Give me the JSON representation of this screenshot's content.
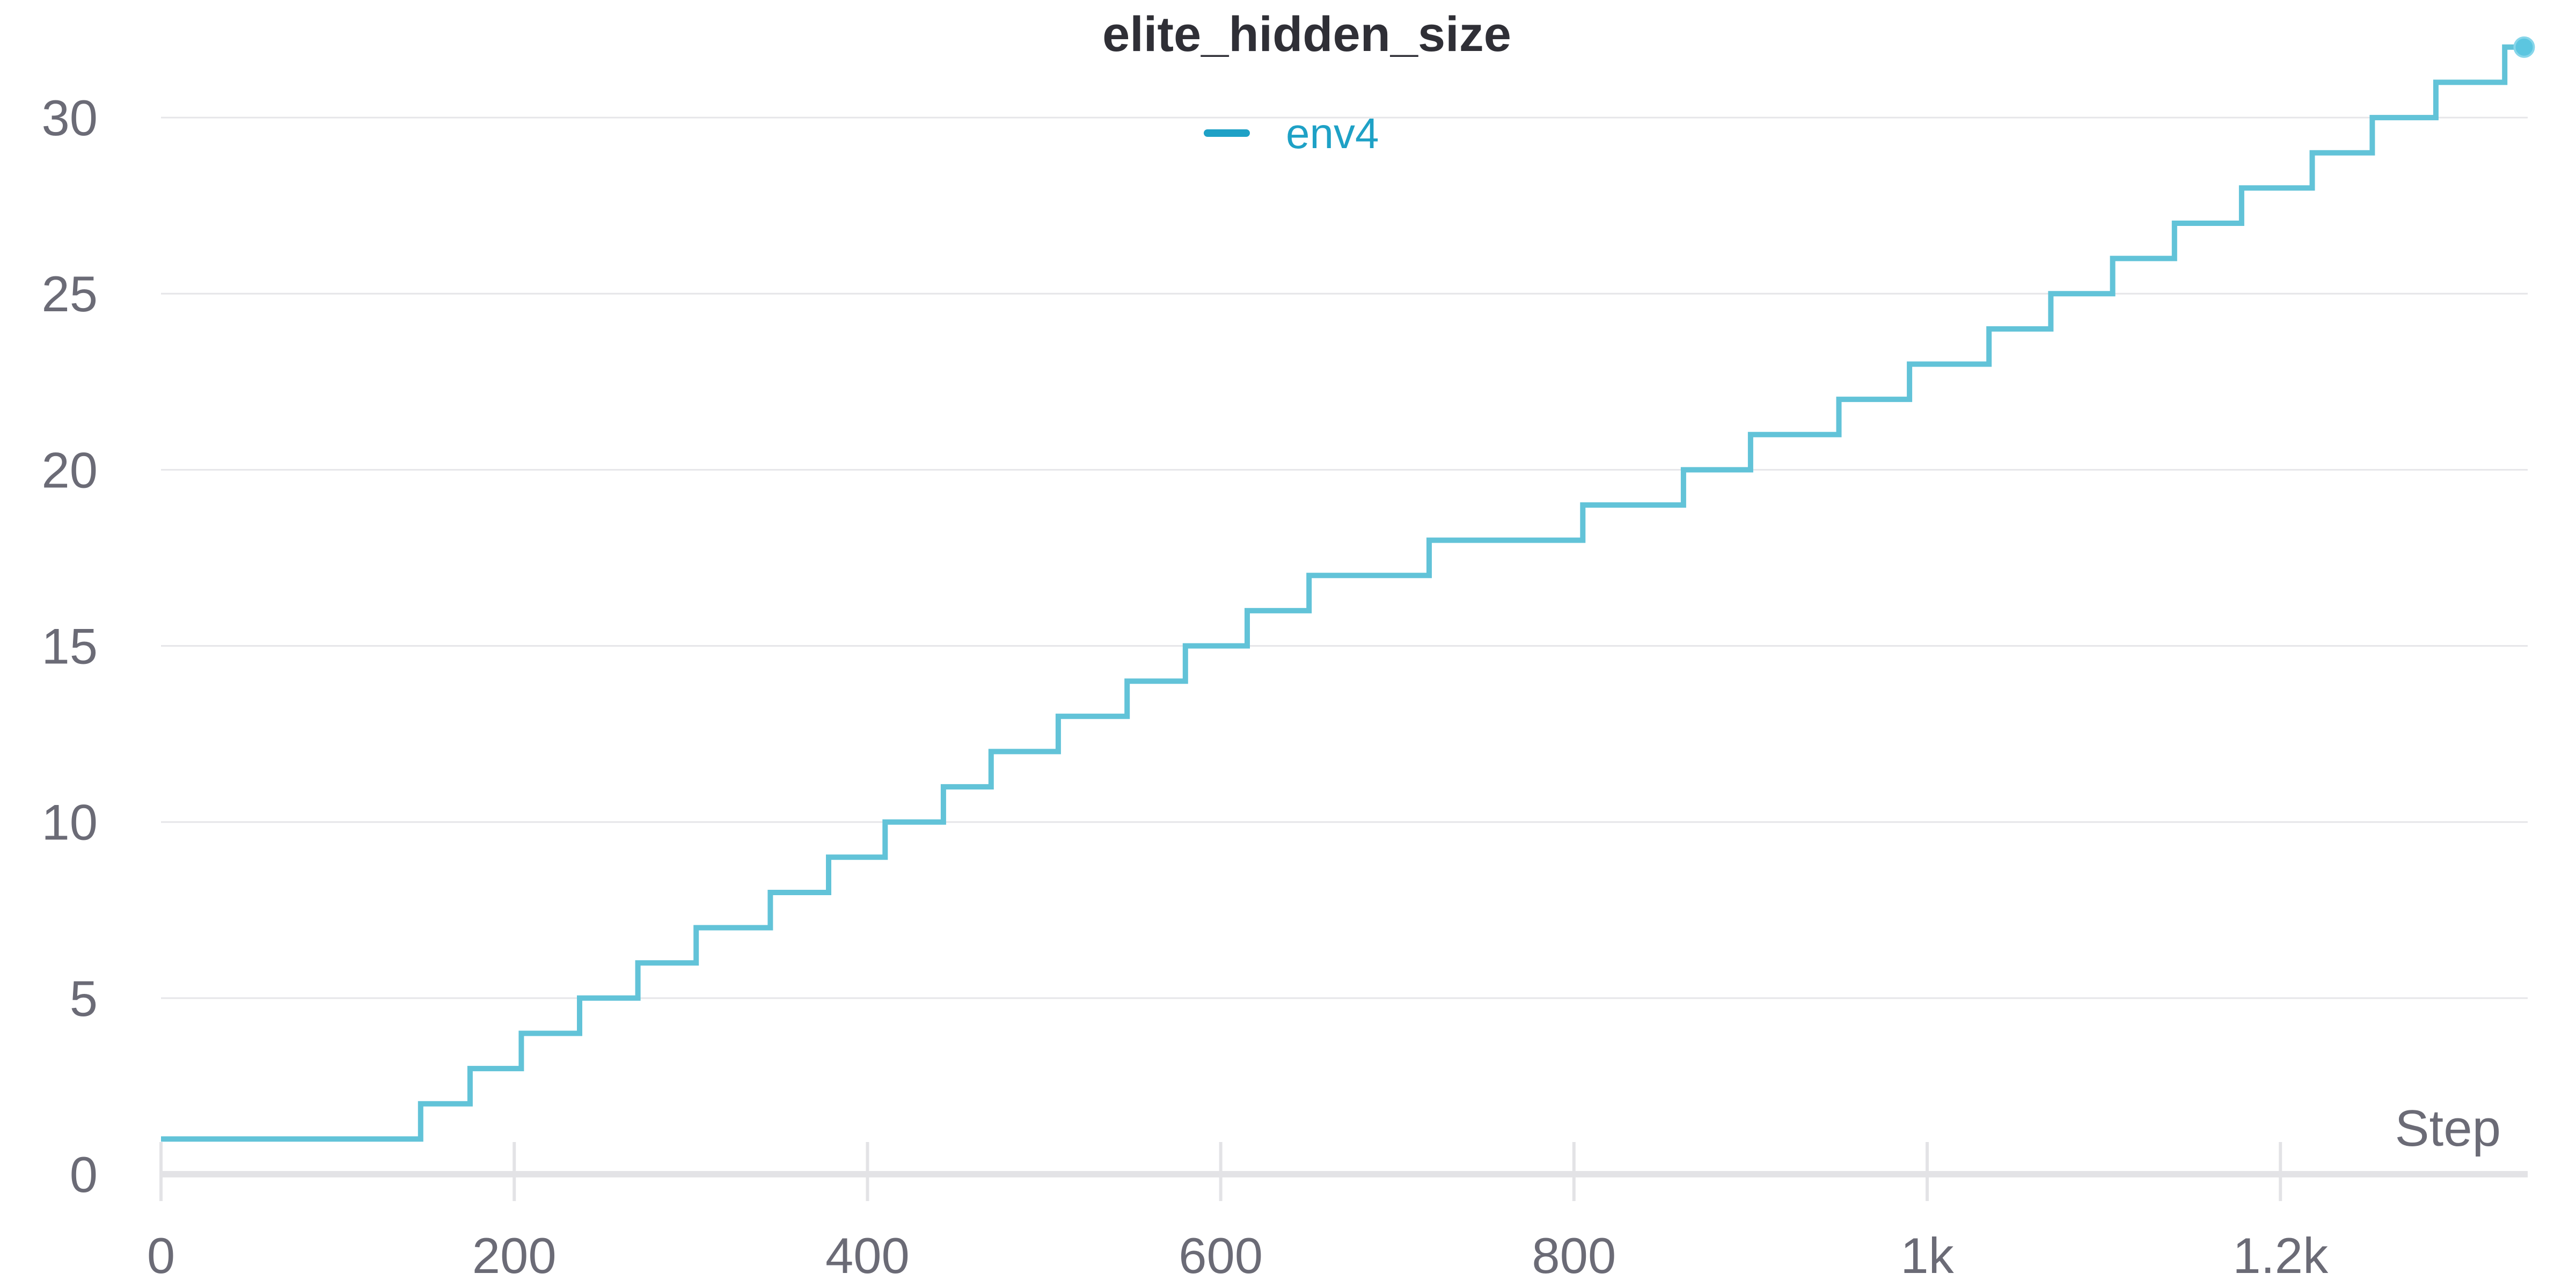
{
  "chart_data": {
    "type": "line",
    "title": "elite_hidden_size",
    "xlabel": "Step",
    "ylabel": "",
    "xlim": [
      0,
      1340
    ],
    "ylim": [
      0,
      32.5
    ],
    "x_ticks": [
      {
        "value": 0,
        "label": "0"
      },
      {
        "value": 200,
        "label": "200"
      },
      {
        "value": 400,
        "label": "400"
      },
      {
        "value": 600,
        "label": "600"
      },
      {
        "value": 800,
        "label": "800"
      },
      {
        "value": 1000,
        "label": "1k"
      },
      {
        "value": 1200,
        "label": "1.2k"
      }
    ],
    "y_ticks": [
      {
        "value": 0,
        "label": "0"
      },
      {
        "value": 5,
        "label": "5"
      },
      {
        "value": 10,
        "label": "10"
      },
      {
        "value": 15,
        "label": "15"
      },
      {
        "value": 20,
        "label": "20"
      },
      {
        "value": 25,
        "label": "25"
      },
      {
        "value": 30,
        "label": "30"
      }
    ],
    "grid": true,
    "legend_position": "top-center",
    "step_mode": "after",
    "series": [
      {
        "name": "env4",
        "color": "#62c3d8",
        "legend_color": "#1ea1c6",
        "x": [
          0,
          147,
          175,
          204,
          237,
          270,
          303,
          345,
          378,
          410,
          443,
          470,
          508,
          547,
          580,
          615,
          650,
          718,
          805,
          862,
          900,
          950,
          990,
          1035,
          1070,
          1105,
          1140,
          1178,
          1218,
          1252,
          1288,
          1327,
          1338
        ],
        "y": [
          1,
          2,
          3,
          4,
          5,
          6,
          7,
          8,
          9,
          10,
          11,
          12,
          13,
          14,
          15,
          16,
          17,
          18,
          19,
          20,
          21,
          22,
          23,
          24,
          25,
          26,
          27,
          28,
          29,
          30,
          31,
          32,
          32
        ]
      }
    ]
  }
}
